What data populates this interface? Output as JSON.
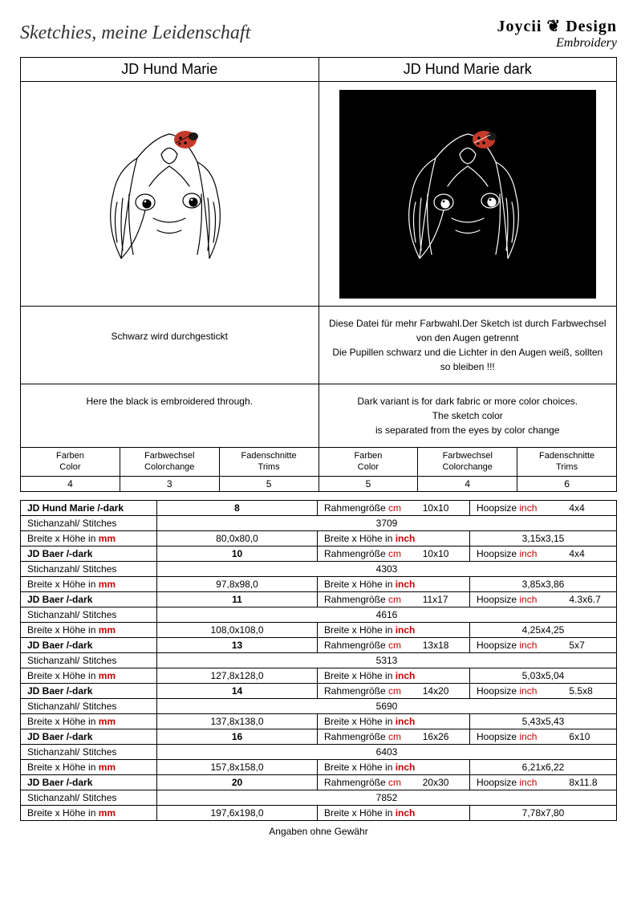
{
  "header": {
    "tagline": "Sketchies, meine Leidenschaft",
    "logo_main": "Joycii ❦ Design",
    "logo_sub": "Embroidery"
  },
  "titles": {
    "left": "JD Hund Marie",
    "right": "JD Hund Marie dark"
  },
  "notes": {
    "left_de": "Schwarz wird durchgestickt",
    "left_en": "Here the black is embroidered through.",
    "right_de": "Diese Datei für mehr Farbwahl.Der Sketch ist durch Farbwechsel von den Augen getrennt\nDie Pupillen schwarz und die Lichter in den Augen weiß, sollten so bleiben !!!",
    "right_en": "Dark variant is for dark fabric or more color choices.\nThe sketch color\nis separated from the eyes by color change"
  },
  "stat_labels": {
    "farben": "Farben",
    "color": "Color",
    "farbwechsel": "Farbwechsel",
    "colorchange": "Colorchange",
    "fadenschnitte": "Fadenschnitte",
    "trims": "Trims"
  },
  "stat_values": {
    "left": [
      "4",
      "3",
      "5"
    ],
    "right": [
      "5",
      "4",
      "6"
    ]
  },
  "size_labels": {
    "name": "JD Hund Marie /-dark",
    "name2": "JD Baer /-dark",
    "rahmen": "Rahmengröße",
    "cm": "cm",
    "hoopsize": "Hoopsize",
    "inch": "inch",
    "stitches": "Stichanzahl/ Stitches",
    "breite_mm": "Breite x Höhe in",
    "mm": "mm",
    "breite_inch": "Breite x Höhe in"
  },
  "sizes": [
    {
      "n": "JD Hund Marie /-dark",
      "sz": "8",
      "cm": "10x10",
      "inch": "4x4",
      "st": "3709",
      "mm": "80,0x80,0",
      "in": "3,15x3,15"
    },
    {
      "n": "JD Baer /-dark",
      "sz": "10",
      "cm": "10x10",
      "inch": "4x4",
      "st": "4303",
      "mm": "97,8x98,0",
      "in": "3,85x3,86"
    },
    {
      "n": "JD Baer /-dark",
      "sz": "11",
      "cm": "11x17",
      "inch": "4.3x6.7",
      "st": "4616",
      "mm": "108,0x108,0",
      "in": "4,25x4,25"
    },
    {
      "n": "JD Baer /-dark",
      "sz": "13",
      "cm": "13x18",
      "inch": "5x7",
      "st": "5313",
      "mm": "127,8x128,0",
      "in": "5,03x5,04"
    },
    {
      "n": "JD Baer /-dark",
      "sz": "14",
      "cm": "14x20",
      "inch": "5.5x8",
      "st": "5690",
      "mm": "137,8x138,0",
      "in": "5,43x5,43"
    },
    {
      "n": "JD Baer /-dark",
      "sz": "16",
      "cm": "16x26",
      "inch": "6x10",
      "st": "6403",
      "mm": "157,8x158,0",
      "in": "6,21x6,22"
    },
    {
      "n": "JD Baer /-dark",
      "sz": "20",
      "cm": "20x30",
      "inch": "8x11.8",
      "st": "7852",
      "mm": "197,6x198,0",
      "in": "7,78x7,80"
    }
  ],
  "footer": "Angaben ohne Gewähr",
  "colors": {
    "ladybug": "#c43a2a",
    "sketch_light": "#000000",
    "sketch_dark": "#ffffff",
    "red_text": "#cc0000"
  }
}
